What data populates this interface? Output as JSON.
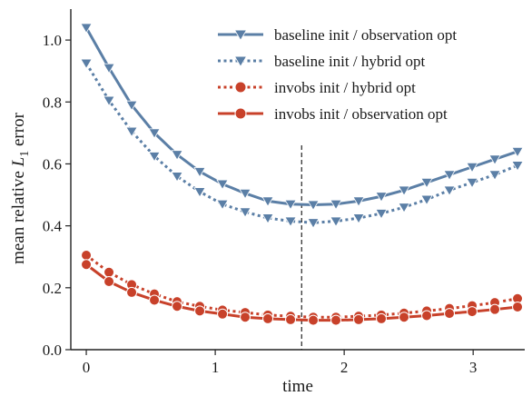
{
  "chart_data": {
    "type": "line",
    "xlabel": "time",
    "ylabel": "mean relative L1 error",
    "ylabel_parts": {
      "prefix": "mean relative ",
      "var": "L",
      "sub": "1",
      "suffix": " error"
    },
    "xlim": [
      -0.12,
      3.4
    ],
    "ylim": [
      0.0,
      1.1
    ],
    "xticks": [
      0,
      1,
      2,
      3
    ],
    "xtick_labels": [
      "0",
      "1",
      "2",
      "3"
    ],
    "yticks": [
      0.0,
      0.2,
      0.4,
      0.6,
      0.8,
      1.0
    ],
    "ytick_labels": [
      "0.0",
      "0.2",
      "0.4",
      "0.6",
      "0.8",
      "1.0"
    ],
    "vline_x": 1.67,
    "grid": false,
    "legend_position": "top-right",
    "x": [
      0.0,
      0.176,
      0.352,
      0.528,
      0.704,
      0.88,
      1.056,
      1.232,
      1.408,
      1.584,
      1.76,
      1.936,
      2.112,
      2.288,
      2.464,
      2.64,
      2.816,
      2.992,
      3.168,
      3.344
    ],
    "series": [
      {
        "name": "baseline init / observation opt",
        "color": "#5b7fa6",
        "line_style": "solid",
        "marker": "triangle-down",
        "values": [
          1.04,
          0.91,
          0.79,
          0.7,
          0.63,
          0.575,
          0.535,
          0.505,
          0.48,
          0.47,
          0.468,
          0.47,
          0.48,
          0.495,
          0.515,
          0.54,
          0.565,
          0.59,
          0.615,
          0.64
        ]
      },
      {
        "name": "baseline init / hybrid opt",
        "color": "#5b7fa6",
        "line_style": "dotted",
        "marker": "triangle-down",
        "values": [
          0.925,
          0.805,
          0.705,
          0.625,
          0.56,
          0.51,
          0.47,
          0.445,
          0.425,
          0.415,
          0.41,
          0.415,
          0.425,
          0.44,
          0.46,
          0.485,
          0.515,
          0.54,
          0.565,
          0.595
        ]
      },
      {
        "name": "invobs init / hybrid opt",
        "color": "#c8412a",
        "line_style": "dotted",
        "marker": "circle",
        "values": [
          0.305,
          0.25,
          0.21,
          0.18,
          0.155,
          0.14,
          0.128,
          0.12,
          0.112,
          0.108,
          0.105,
          0.105,
          0.108,
          0.112,
          0.118,
          0.125,
          0.133,
          0.142,
          0.152,
          0.165
        ]
      },
      {
        "name": "invobs init / observation opt",
        "color": "#c8412a",
        "line_style": "solid",
        "marker": "circle",
        "values": [
          0.275,
          0.22,
          0.185,
          0.16,
          0.14,
          0.125,
          0.115,
          0.105,
          0.1,
          0.097,
          0.095,
          0.095,
          0.097,
          0.1,
          0.105,
          0.11,
          0.117,
          0.123,
          0.13,
          0.138
        ]
      }
    ]
  }
}
